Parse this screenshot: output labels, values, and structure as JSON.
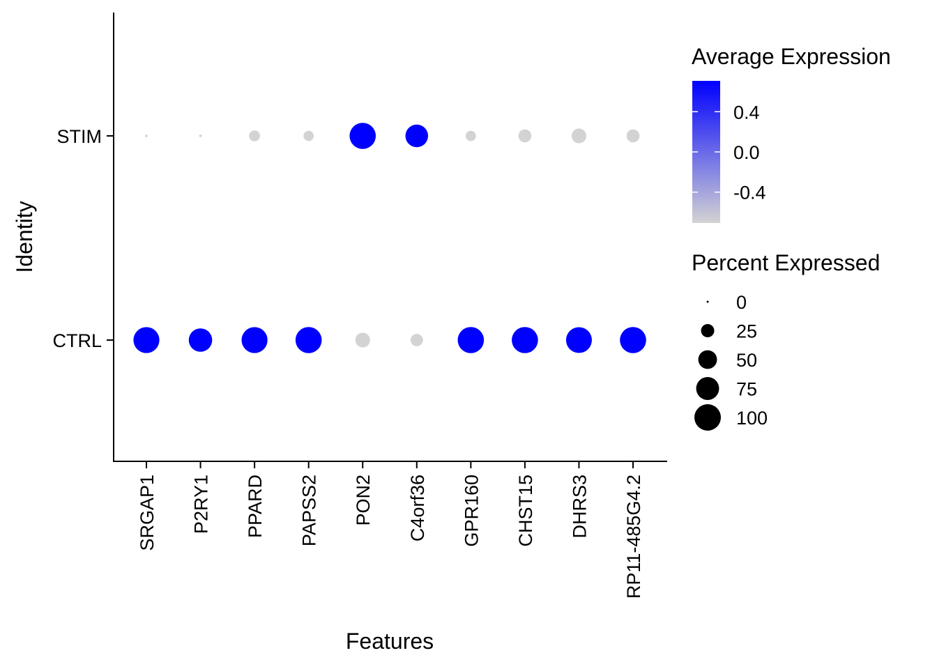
{
  "chart_data": {
    "type": "dot",
    "xlabel": "Features",
    "ylabel": "Identity",
    "features": [
      "SRGAP1",
      "P2RY1",
      "PPARD",
      "PAPSS2",
      "PON2",
      "C4orf36",
      "GPR160",
      "CHST15",
      "DHRS3",
      "RP11-485G4.2"
    ],
    "identities": [
      "STIM",
      "CTRL"
    ],
    "average_expression": {
      "STIM": [
        -0.707,
        -0.707,
        -0.707,
        -0.707,
        0.707,
        0.707,
        -0.707,
        -0.707,
        -0.707,
        -0.707
      ],
      "CTRL": [
        0.707,
        0.707,
        0.707,
        0.707,
        -0.707,
        -0.707,
        0.707,
        0.707,
        0.707,
        0.707
      ]
    },
    "percent_expressed": {
      "STIM": [
        1,
        1,
        17,
        15,
        98,
        73,
        15,
        24,
        31,
        24
      ],
      "CTRL": [
        96,
        78,
        96,
        98,
        31,
        22,
        98,
        98,
        95,
        98
      ]
    },
    "color_legend": {
      "title": "Average Expression",
      "low_color": "#d3d3d3",
      "high_color": "#0000ff",
      "range": [
        -0.707,
        0.707
      ],
      "ticks": [
        0.4,
        0.0,
        -0.4
      ],
      "tick_labels": [
        "0.4",
        "0.0",
        "-0.4"
      ]
    },
    "size_legend": {
      "title": "Percent Expressed",
      "values": [
        0,
        25,
        50,
        75,
        100
      ],
      "labels": [
        "0",
        "25",
        "50",
        "75",
        "100"
      ]
    },
    "grid": false
  }
}
